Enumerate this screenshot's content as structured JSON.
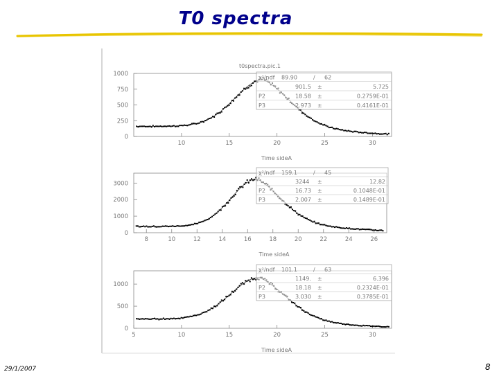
{
  "slide": {
    "title": "T0 spectra",
    "date": "29/1/2007",
    "page_number": "8",
    "colors": {
      "title": "#00008b",
      "underline": "#e8c500",
      "axis": "#888888",
      "marker": "#000000",
      "fit_line": "#555555"
    }
  },
  "chart_data": [
    {
      "type": "scatter",
      "title": "t0spectra.pic.1",
      "xlabel": "Time sideA",
      "ylabel": "",
      "xlim": [
        5,
        32
      ],
      "ylim": [
        0,
        1000
      ],
      "x_ticks": [
        10,
        15,
        20,
        25,
        30
      ],
      "y_ticks": [
        0,
        250,
        500,
        750,
        1000
      ],
      "fit": {
        "baseline": 160,
        "amplitude": 901.5,
        "mean": 18.58,
        "sigma": 2.973,
        "tail": 5.5
      },
      "x_start": 5.3,
      "stats": {
        "chi2_label": "χ²/ndf",
        "chi2": "89.90",
        "slash": "/",
        "ndf": "62",
        "rows": [
          {
            "name": "",
            "value": "901.5",
            "pm": "±",
            "error": "5.725"
          },
          {
            "name": "P2",
            "value": "18.58",
            "pm": "±",
            "error": "0.2759E-01"
          },
          {
            "name": "P3",
            "value": "2.973",
            "pm": "±",
            "error": "0.4161E-01"
          }
        ]
      },
      "grid": false,
      "legend": "top-right"
    },
    {
      "type": "scatter",
      "title": "",
      "xlabel": "Time sideA",
      "ylabel": "",
      "xlim": [
        7,
        27
      ],
      "ylim": [
        0,
        3600
      ],
      "x_ticks": [
        8,
        10,
        12,
        14,
        16,
        18,
        20,
        22,
        24,
        26
      ],
      "y_ticks": [
        0,
        1000,
        2000,
        3000
      ],
      "fit": {
        "baseline": 380,
        "amplitude": 3244,
        "mean": 16.73,
        "sigma": 2.007,
        "tail": 4.2
      },
      "x_start": 7.2,
      "stats": {
        "chi2_label": "χ²/ndf",
        "chi2": "159.1",
        "slash": "/",
        "ndf": "45",
        "rows": [
          {
            "name": "",
            "value": "3244",
            "pm": "±",
            "error": "12.82"
          },
          {
            "name": "P2",
            "value": "16.73",
            "pm": "±",
            "error": "0.1048E-01"
          },
          {
            "name": "P3",
            "value": "2.007",
            "pm": "±",
            "error": "0.1489E-01"
          }
        ]
      },
      "grid": false,
      "legend": "top-right"
    },
    {
      "type": "scatter",
      "title": "",
      "xlabel": "Time sideA",
      "ylabel": "",
      "xlim": [
        5,
        32
      ],
      "ylim": [
        0,
        1300
      ],
      "x_ticks": [
        5,
        10,
        15,
        20,
        25,
        30
      ],
      "y_ticks": [
        0,
        500,
        1000
      ],
      "fit": {
        "baseline": 210,
        "amplitude": 1149,
        "mean": 18.18,
        "sigma": 3.03,
        "tail": 5.0
      },
      "x_start": 5.3,
      "stats": {
        "chi2_label": "χ²/ndf",
        "chi2": "101.1",
        "slash": "/",
        "ndf": "63",
        "rows": [
          {
            "name": "",
            "value": "1149.",
            "pm": "±",
            "error": "6.396"
          },
          {
            "name": "P2",
            "value": "18.18",
            "pm": "±",
            "error": "0.2324E-01"
          },
          {
            "name": "P3",
            "value": "3.030",
            "pm": "±",
            "error": "0.3785E-01"
          }
        ]
      },
      "grid": false,
      "legend": "top-right"
    }
  ]
}
